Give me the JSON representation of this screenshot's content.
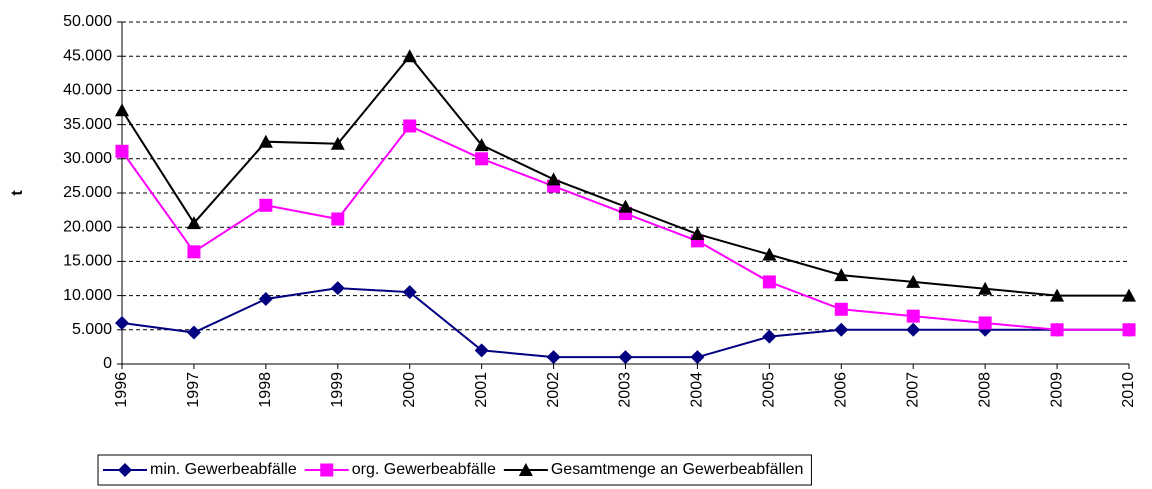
{
  "chart_data": {
    "type": "line",
    "y_label": "t",
    "categories": [
      "1996",
      "1997",
      "1998",
      "1999",
      "2000",
      "2001",
      "2002",
      "2003",
      "2004",
      "2005",
      "2006",
      "2007",
      "2008",
      "2009",
      "2010"
    ],
    "series": [
      {
        "name": "min. Gewerbeabfälle",
        "color": "#000080",
        "marker": "diamond",
        "values": [
          6000,
          4600,
          9500,
          11100,
          10500,
          2000,
          1000,
          1000,
          1000,
          4000,
          5000,
          5000,
          5000,
          5000,
          5000
        ]
      },
      {
        "name": "org. Gewerbeabfälle",
        "color": "#ff00ff",
        "marker": "square",
        "values": [
          31100,
          16400,
          23200,
          21200,
          34800,
          30000,
          26000,
          22000,
          18000,
          12000,
          8000,
          7000,
          6000,
          5000,
          5000
        ]
      },
      {
        "name": "Gesamtmenge an Gewerbeabfällen",
        "color": "#000000",
        "marker": "triangle",
        "values": [
          37100,
          20600,
          32500,
          32200,
          45000,
          32000,
          27000,
          23000,
          19000,
          16000,
          13000,
          12000,
          11000,
          10000,
          10000
        ]
      }
    ],
    "ylim": [
      0,
      50000
    ],
    "yticks": [
      0,
      {
        "value": 5000,
        "label": "5.000"
      },
      {
        "value": 10000,
        "label": "10.000"
      },
      {
        "value": 15000,
        "label": "15.000"
      },
      {
        "value": 20000,
        "label": "20.000"
      },
      {
        "value": 25000,
        "label": "25.000"
      },
      {
        "value": 30000,
        "label": "30.000"
      },
      {
        "value": 35000,
        "label": "35.000"
      },
      {
        "value": 40000,
        "label": "40.000"
      },
      {
        "value": 45000,
        "label": "45.000"
      },
      {
        "value": 50000,
        "label": "50.000"
      }
    ],
    "grid": true,
    "legend": "bottom"
  }
}
